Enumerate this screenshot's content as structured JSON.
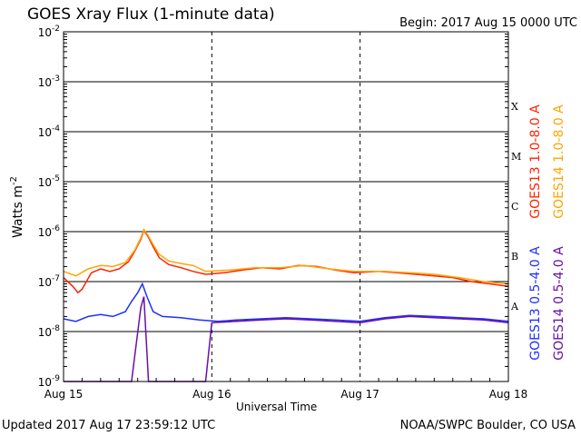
{
  "header": {
    "title": "GOES Xray Flux (1-minute data)",
    "begin_label": "Begin:  2017 Aug 15 0000 UTC"
  },
  "footer": {
    "updated": "Updated 2017 Aug 17 23:59:12 UTC",
    "credit": "NOAA/SWPC Boulder, CO USA"
  },
  "colors": {
    "goes13_long": "#ff2200",
    "goes14_long": "#ffa500",
    "goes13_short": "#1f2fff",
    "goes14_short": "#6a0fa8"
  },
  "chart_data": {
    "type": "line",
    "y_scale": "log",
    "ylim": [
      1e-09,
      0.01
    ],
    "xlim": [
      "2017-08-15",
      "2017-08-18"
    ],
    "ylabel": "Watts m-2",
    "xlabel": "Universal Time",
    "grid": true,
    "legend_position": "right",
    "x_ticks": [
      {
        "label": "Aug 15",
        "value": "2017-08-15"
      },
      {
        "label": "Aug 16",
        "value": "2017-08-16"
      },
      {
        "label": "Aug 17",
        "value": "2017-08-17"
      },
      {
        "label": "Aug 18",
        "value": "2017-08-18"
      }
    ],
    "y_ticks": [
      {
        "mant": "10",
        "exp": "-9",
        "value": 1e-09
      },
      {
        "mant": "10",
        "exp": "-8",
        "value": 1e-08
      },
      {
        "mant": "10",
        "exp": "-7",
        "value": 1e-07
      },
      {
        "mant": "10",
        "exp": "-6",
        "value": 1e-06
      },
      {
        "mant": "10",
        "exp": "-5",
        "value": 1e-05
      },
      {
        "mant": "10",
        "exp": "-4",
        "value": 0.0001
      },
      {
        "mant": "10",
        "exp": "-3",
        "value": 0.001
      },
      {
        "mant": "10",
        "exp": "-2",
        "value": 0.01
      }
    ],
    "flare_classes": [
      {
        "label": "A",
        "value": 3.2e-08
      },
      {
        "label": "B",
        "value": 3.2e-07
      },
      {
        "label": "C",
        "value": 3.2e-06
      },
      {
        "label": "M",
        "value": 3.2e-05
      },
      {
        "label": "X",
        "value": 0.00032
      }
    ],
    "series": [
      {
        "name": "GOES13 1.0-8.0 A",
        "color": "#ff2200",
        "points": [
          [
            "2017-08-15 00:00",
            1.2e-07
          ],
          [
            "2017-08-15 01:30",
            8e-08
          ],
          [
            "2017-08-15 02:20",
            6e-08
          ],
          [
            "2017-08-15 03:00",
            7e-08
          ],
          [
            "2017-08-15 04:30",
            1.5e-07
          ],
          [
            "2017-08-15 06:00",
            1.8e-07
          ],
          [
            "2017-08-15 07:30",
            1.6e-07
          ],
          [
            "2017-08-15 09:00",
            1.8e-07
          ],
          [
            "2017-08-15 10:30",
            2.5e-07
          ],
          [
            "2017-08-15 11:30",
            4e-07
          ],
          [
            "2017-08-15 12:30",
            7e-07
          ],
          [
            "2017-08-15 13:00",
            1.05e-06
          ],
          [
            "2017-08-15 13:40",
            8e-07
          ],
          [
            "2017-08-15 14:30",
            5e-07
          ],
          [
            "2017-08-15 15:30",
            3e-07
          ],
          [
            "2017-08-15 17:00",
            2.2e-07
          ],
          [
            "2017-08-15 19:00",
            1.9e-07
          ],
          [
            "2017-08-15 21:00",
            1.6e-07
          ],
          [
            "2017-08-15 23:00",
            1.4e-07
          ],
          [
            "2017-08-16 02:00",
            1.5e-07
          ],
          [
            "2017-08-16 05:00",
            1.7e-07
          ],
          [
            "2017-08-16 08:00",
            1.9e-07
          ],
          [
            "2017-08-16 11:00",
            1.8e-07
          ],
          [
            "2017-08-16 14:00",
            2.1e-07
          ],
          [
            "2017-08-16 17:00",
            2e-07
          ],
          [
            "2017-08-16 20:00",
            1.7e-07
          ],
          [
            "2017-08-16 23:00",
            1.5e-07
          ],
          [
            "2017-08-17 03:00",
            1.6e-07
          ],
          [
            "2017-08-17 06:00",
            1.5e-07
          ],
          [
            "2017-08-17 09:00",
            1.4e-07
          ],
          [
            "2017-08-17 12:00",
            1.3e-07
          ],
          [
            "2017-08-17 15:00",
            1.2e-07
          ],
          [
            "2017-08-17 18:00",
            1e-07
          ],
          [
            "2017-08-17 21:00",
            9e-08
          ],
          [
            "2017-08-18 00:00",
            8e-08
          ]
        ]
      },
      {
        "name": "GOES14 1.0-8.0 A",
        "color": "#ffa500",
        "points": [
          [
            "2017-08-15 00:00",
            1.6e-07
          ],
          [
            "2017-08-15 02:00",
            1.3e-07
          ],
          [
            "2017-08-15 04:00",
            1.8e-07
          ],
          [
            "2017-08-15 06:00",
            2.1e-07
          ],
          [
            "2017-08-15 08:00",
            2e-07
          ],
          [
            "2017-08-15 10:00",
            2.4e-07
          ],
          [
            "2017-08-15 11:30",
            4.2e-07
          ],
          [
            "2017-08-15 12:30",
            7.5e-07
          ],
          [
            "2017-08-15 13:00",
            1.1e-06
          ],
          [
            "2017-08-15 13:40",
            8.5e-07
          ],
          [
            "2017-08-15 14:30",
            5.5e-07
          ],
          [
            "2017-08-15 15:30",
            3.5e-07
          ],
          [
            "2017-08-15 17:00",
            2.6e-07
          ],
          [
            "2017-08-15 19:00",
            2.3e-07
          ],
          [
            "2017-08-15 21:00",
            2.1e-07
          ],
          [
            "2017-08-15 23:00",
            1.6e-07
          ],
          [
            "2017-08-16 03:00",
            1.7e-07
          ],
          [
            "2017-08-16 07:00",
            1.9e-07
          ],
          [
            "2017-08-16 11:00",
            1.9e-07
          ],
          [
            "2017-08-16 15:00",
            2.1e-07
          ],
          [
            "2017-08-16 19:00",
            1.8e-07
          ],
          [
            "2017-08-16 23:00",
            1.6e-07
          ],
          [
            "2017-08-17 04:00",
            1.6e-07
          ],
          [
            "2017-08-17 08:00",
            1.5e-07
          ],
          [
            "2017-08-17 12:00",
            1.4e-07
          ],
          [
            "2017-08-17 16:00",
            1.2e-07
          ],
          [
            "2017-08-17 20:00",
            1e-07
          ],
          [
            "2017-08-18 00:00",
            9e-08
          ]
        ]
      },
      {
        "name": "GOES13 0.5-4.0 A",
        "color": "#1f2fff",
        "points": [
          [
            "2017-08-15 00:00",
            1.8e-08
          ],
          [
            "2017-08-15 02:00",
            1.6e-08
          ],
          [
            "2017-08-15 04:00",
            2e-08
          ],
          [
            "2017-08-15 06:00",
            2.2e-08
          ],
          [
            "2017-08-15 08:00",
            2e-08
          ],
          [
            "2017-08-15 10:00",
            2.5e-08
          ],
          [
            "2017-08-15 11:00",
            4e-08
          ],
          [
            "2017-08-15 12:00",
            6e-08
          ],
          [
            "2017-08-15 12:45",
            9e-08
          ],
          [
            "2017-08-15 13:30",
            5e-08
          ],
          [
            "2017-08-15 14:30",
            2.5e-08
          ],
          [
            "2017-08-15 16:00",
            2e-08
          ],
          [
            "2017-08-15 19:00",
            1.9e-08
          ],
          [
            "2017-08-15 22:00",
            1.7e-08
          ],
          [
            "2017-08-16 01:00",
            1.6e-08
          ],
          [
            "2017-08-16 04:00",
            1.7e-08
          ],
          [
            "2017-08-16 08:00",
            1.8e-08
          ],
          [
            "2017-08-16 12:00",
            1.9e-08
          ],
          [
            "2017-08-16 16:00",
            1.8e-08
          ],
          [
            "2017-08-16 20:00",
            1.7e-08
          ],
          [
            "2017-08-17 00:00",
            1.6e-08
          ],
          [
            "2017-08-17 04:00",
            1.9e-08
          ],
          [
            "2017-08-17 08:00",
            2.1e-08
          ],
          [
            "2017-08-17 12:00",
            2e-08
          ],
          [
            "2017-08-17 16:00",
            1.9e-08
          ],
          [
            "2017-08-17 20:00",
            1.8e-08
          ],
          [
            "2017-08-18 00:00",
            1.6e-08
          ]
        ]
      },
      {
        "name": "GOES14 0.5-4.0 A",
        "color": "#6a0fa8",
        "points": [
          [
            "2017-08-15 00:00",
            1e-09
          ],
          [
            "2017-08-15 02:00",
            1e-09
          ],
          [
            "2017-08-15 04:00",
            1e-09
          ],
          [
            "2017-08-15 08:00",
            1e-09
          ],
          [
            "2017-08-15 11:00",
            1e-09
          ],
          [
            "2017-08-15 12:30",
            3e-08
          ],
          [
            "2017-08-15 13:00",
            5e-08
          ],
          [
            "2017-08-15 13:45",
            1e-09
          ],
          [
            "2017-08-15 20:00",
            1e-09
          ],
          [
            "2017-08-15 23:00",
            1e-09
          ],
          [
            "2017-08-16 00:00",
            1.5e-08
          ],
          [
            "2017-08-16 04:00",
            1.6e-08
          ],
          [
            "2017-08-16 08:00",
            1.7e-08
          ],
          [
            "2017-08-16 12:00",
            1.8e-08
          ],
          [
            "2017-08-16 16:00",
            1.7e-08
          ],
          [
            "2017-08-16 20:00",
            1.6e-08
          ],
          [
            "2017-08-17 00:00",
            1.5e-08
          ],
          [
            "2017-08-17 04:00",
            1.8e-08
          ],
          [
            "2017-08-17 08:00",
            2e-08
          ],
          [
            "2017-08-17 12:00",
            1.9e-08
          ],
          [
            "2017-08-17 16:00",
            1.8e-08
          ],
          [
            "2017-08-17 20:00",
            1.7e-08
          ],
          [
            "2017-08-18 00:00",
            1.5e-08
          ]
        ]
      }
    ]
  }
}
